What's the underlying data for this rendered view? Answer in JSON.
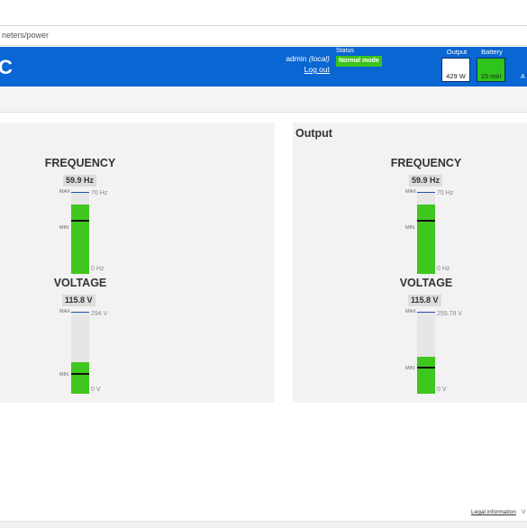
{
  "browser": {
    "url_fragment": "neters/power"
  },
  "header": {
    "brand_fragment": "C",
    "user": "admin",
    "user_scope": "(local)",
    "logout": "Log out",
    "status_label": "Status",
    "status_value": "Normal mode",
    "output_label": "Output",
    "output_value": "429 W",
    "battery_label": "Battery",
    "battery_value": "15 min",
    "edge_fragment": "A"
  },
  "panels": {
    "left": {
      "title": "",
      "frequency": {
        "title": "FREQUENCY",
        "value": "59.9 Hz",
        "max_label": "70 Hz",
        "min_label": "0 Hz",
        "fill_fraction": 0.856,
        "min_marker_fraction": 0.657
      },
      "voltage": {
        "title": "VOLTAGE",
        "value": "115.8 V",
        "max_label": "294 V",
        "min_label": "0 V",
        "fill_fraction": 0.394,
        "min_marker_fraction": 0.24
      }
    },
    "right": {
      "title": "Output",
      "frequency": {
        "title": "FREQUENCY",
        "value": "59.9 Hz",
        "max_label": "70 Hz",
        "min_label": "0 Hz",
        "fill_fraction": 0.856,
        "min_marker_fraction": 0.657
      },
      "voltage": {
        "title": "VOLTAGE",
        "value": "115.8 V",
        "max_label": "255.78 V",
        "min_label": "0 V",
        "fill_fraction": 0.453,
        "min_marker_fraction": 0.32
      }
    }
  },
  "gauge_ticks": {
    "max": "MAX",
    "min": "MIN"
  },
  "footer": {
    "legal": "Legal information",
    "version_fragment": "V"
  },
  "colors": {
    "header_blue": "#0a66d2",
    "status_green": "#3bc21b",
    "gauge_fill": "#3fc61f",
    "panel_bg": "#f2f2f2"
  }
}
